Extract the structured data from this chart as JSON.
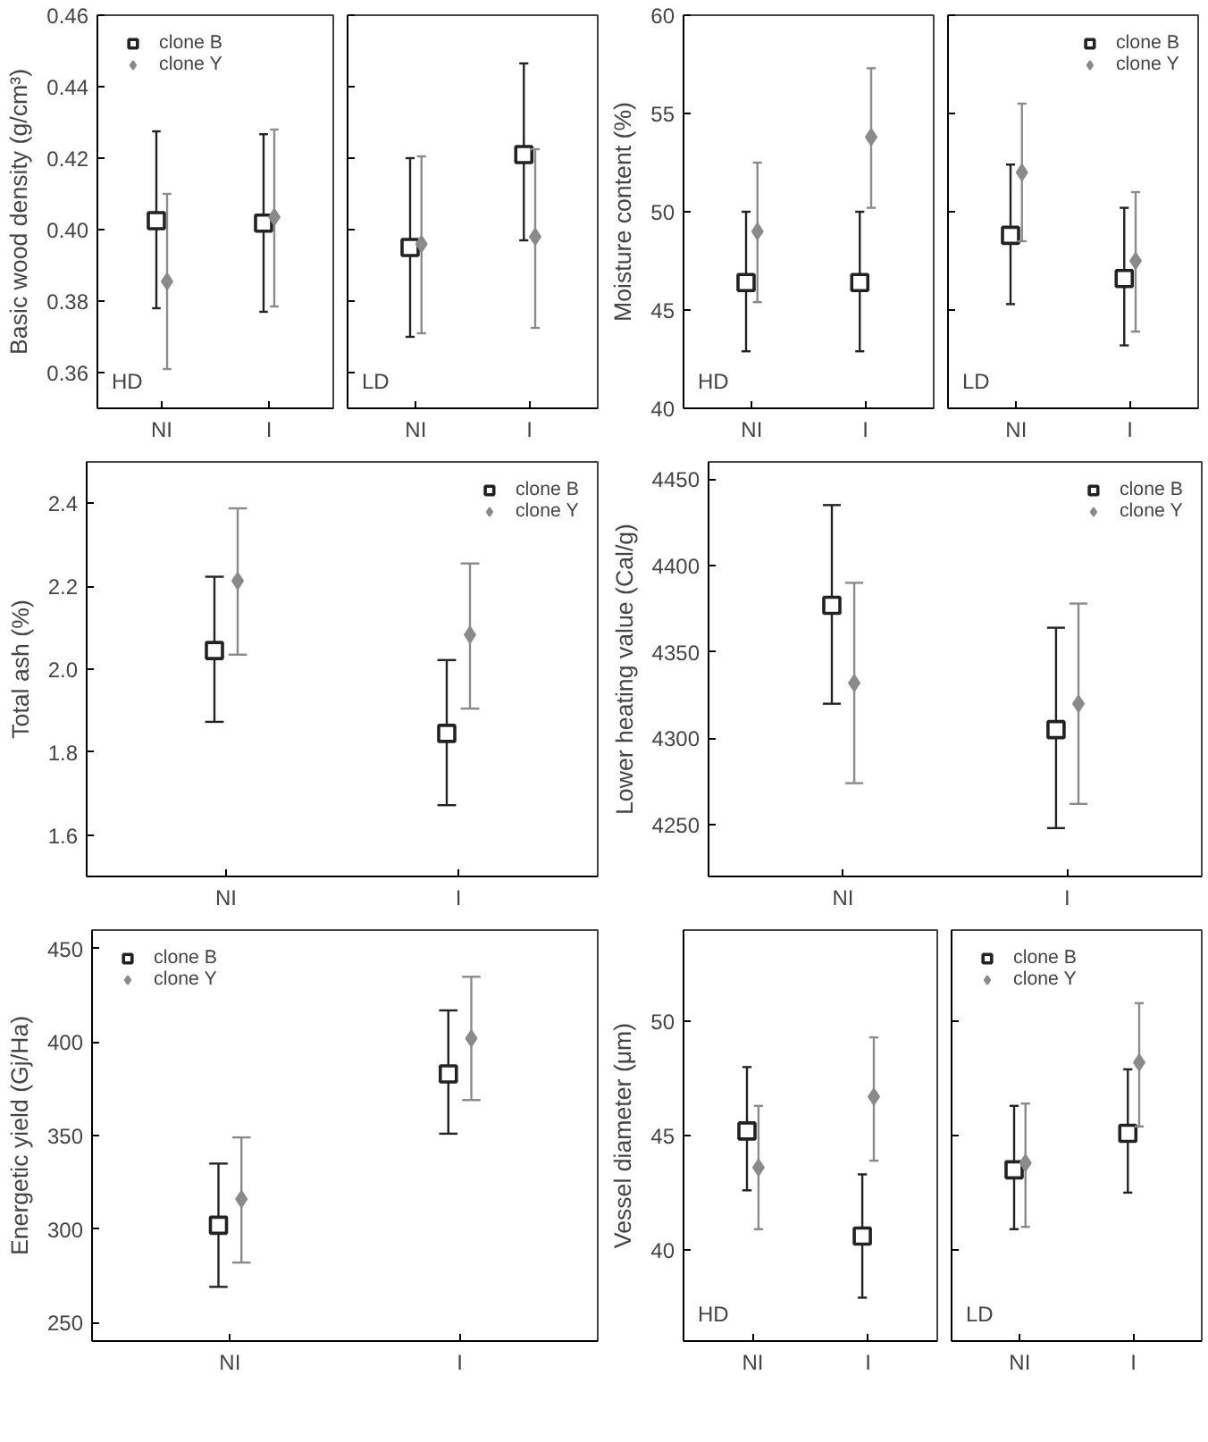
{
  "chart_data": [
    {
      "type": "scatter",
      "categories": [
        "NI",
        "I"
      ],
      "ylabel": "Basic wood density (g/cm³)",
      "ylim": [
        0.35,
        0.46
      ],
      "yticks": [
        0.36,
        0.38,
        {
          "value": 0.4,
          "label": "0.40"
        },
        0.42,
        0.44,
        0.46
      ],
      "legend": "top left",
      "annotations": [
        "HD"
      ],
      "series": [
        {
          "name": "clone B",
          "color": "#222222",
          "marker": "square",
          "values": [
            0.4025,
            0.4018
          ],
          "errors": [
            [
              0.378,
              0.4275
            ],
            [
              0.377,
              0.4267
            ]
          ]
        },
        {
          "name": "clone Y",
          "color": "#8a8a8a",
          "marker": "diamond",
          "values": [
            0.3855,
            0.4035
          ],
          "errors": [
            [
              0.361,
              0.41
            ],
            [
              0.3785,
              0.428
            ]
          ]
        }
      ]
    },
    {
      "type": "scatter",
      "categories": [
        "NI",
        "I"
      ],
      "ylim": [
        0.35,
        0.46
      ],
      "yticks": [
        0.36,
        0.38,
        0.4,
        0.42,
        0.44,
        0.46
      ],
      "tick_labels": "x",
      "annotations": [
        "LD"
      ],
      "series": [
        {
          "color": "#222222",
          "marker": "square",
          "values": [
            0.395,
            0.421
          ],
          "errors": [
            [
              0.37,
              0.42
            ],
            [
              0.397,
              0.4465
            ]
          ]
        },
        {
          "color": "#8a8a8a",
          "marker": "diamond",
          "values": [
            0.396,
            0.398
          ],
          "errors": [
            [
              0.371,
              0.4205
            ],
            [
              0.3725,
              0.4225
            ]
          ]
        }
      ]
    },
    {
      "type": "scatter",
      "categories": [
        "NI",
        "I"
      ],
      "ylabel": "Moisture content (%)",
      "ylim": [
        40,
        60
      ],
      "yticks": [
        40,
        45,
        50,
        55,
        60
      ],
      "annotations": [
        "HD"
      ],
      "series": [
        {
          "color": "#222222",
          "marker": "square",
          "values": [
            46.4,
            46.4
          ],
          "errors": [
            [
              42.9,
              50.0
            ],
            [
              42.9,
              50.0
            ]
          ]
        },
        {
          "color": "#8a8a8a",
          "marker": "diamond",
          "values": [
            49.0,
            53.8
          ],
          "errors": [
            [
              45.4,
              52.5
            ],
            [
              50.2,
              57.3
            ]
          ]
        }
      ]
    },
    {
      "type": "scatter",
      "categories": [
        "NI",
        "I"
      ],
      "ylim": [
        40,
        60
      ],
      "yticks": [
        40,
        45,
        50,
        55,
        60
      ],
      "tick_labels": "x",
      "legend": "top right",
      "annotations": [
        "LD"
      ],
      "series": [
        {
          "name": "clone B",
          "color": "#222222",
          "marker": "square",
          "values": [
            48.8,
            46.6
          ],
          "errors": [
            [
              45.3,
              52.4
            ],
            [
              43.2,
              50.2
            ]
          ]
        },
        {
          "name": "clone Y",
          "color": "#8a8a8a",
          "marker": "diamond",
          "values": [
            52.0,
            47.5
          ],
          "errors": [
            [
              48.5,
              55.5
            ],
            [
              43.9,
              51.0
            ]
          ]
        }
      ]
    },
    {
      "type": "scatter",
      "categories": [
        "NI",
        "I"
      ],
      "ylabel": "Total ash (%)",
      "ylim": [
        1.5,
        2.5
      ],
      "yticks": [
        {
          "value": 1.6,
          "label": "1.6"
        },
        {
          "value": 1.8,
          "label": "1.8"
        },
        {
          "value": 2.0,
          "label": "2.0"
        },
        {
          "value": 2.2,
          "label": "2.2"
        },
        {
          "value": 2.4,
          "label": "2.4"
        }
      ],
      "legend": "top right",
      "series": [
        {
          "name": "clone B",
          "color": "#222222",
          "marker": "square",
          "values": [
            2.045,
            1.845
          ],
          "errors": [
            [
              1.873,
              2.223
            ],
            [
              1.672,
              2.022
            ]
          ]
        },
        {
          "name": "clone Y",
          "color": "#8a8a8a",
          "marker": "diamond",
          "values": [
            2.213,
            2.083
          ],
          "errors": [
            [
              2.035,
              2.388
            ],
            [
              1.905,
              2.255
            ]
          ]
        }
      ]
    },
    {
      "type": "scatter",
      "categories": [
        "NI",
        "I"
      ],
      "ylabel": "Lower heating value (Cal/g)",
      "ylim": [
        4220,
        4460
      ],
      "yticks": [
        4250,
        4300,
        4350,
        4400,
        4450
      ],
      "legend": "top right",
      "series": [
        {
          "name": "clone B",
          "color": "#222222",
          "marker": "square",
          "values": [
            4377,
            4305
          ],
          "errors": [
            [
              4320,
              4435
            ],
            [
              4248,
              4364
            ]
          ]
        },
        {
          "name": "clone Y",
          "color": "#8a8a8a",
          "marker": "diamond",
          "values": [
            4332,
            4320
          ],
          "errors": [
            [
              4274,
              4390
            ],
            [
              4262,
              4378
            ]
          ]
        }
      ]
    },
    {
      "type": "scatter",
      "categories": [
        "NI",
        "I"
      ],
      "ylabel": "Energetic yield (Gj/Ha)",
      "ylim": [
        240,
        460
      ],
      "yticks": [
        250,
        300,
        350,
        400,
        450
      ],
      "legend": "top left",
      "series": [
        {
          "name": "clone B",
          "color": "#222222",
          "marker": "square",
          "values": [
            302,
            383
          ],
          "errors": [
            [
              269,
              335
            ],
            [
              351,
              417
            ]
          ]
        },
        {
          "name": "clone Y",
          "color": "#8a8a8a",
          "marker": "diamond",
          "values": [
            316,
            402
          ],
          "errors": [
            [
              282,
              349
            ],
            [
              369,
              435
            ]
          ]
        }
      ]
    },
    {
      "type": "scatter",
      "categories": [
        "NI",
        "I"
      ],
      "ylabel": "Vessel diameter (μm)",
      "ylim": [
        36,
        54
      ],
      "yticks": [
        40,
        45,
        50
      ],
      "annotations": [
        "HD"
      ],
      "series": [
        {
          "color": "#222222",
          "marker": "square",
          "values": [
            45.2,
            40.6
          ],
          "errors": [
            [
              42.6,
              48.0
            ],
            [
              37.9,
              43.3
            ]
          ]
        },
        {
          "color": "#8a8a8a",
          "marker": "diamond",
          "values": [
            43.6,
            46.7
          ],
          "errors": [
            [
              40.9,
              46.3
            ],
            [
              43.9,
              49.3
            ]
          ]
        }
      ]
    },
    {
      "type": "scatter",
      "categories": [
        "NI",
        "I"
      ],
      "ylim": [
        36,
        54
      ],
      "yticks": [
        40,
        45,
        50
      ],
      "tick_labels": "x",
      "legend": "top left",
      "annotations": [
        "LD"
      ],
      "series": [
        {
          "name": "clone B",
          "color": "#222222",
          "marker": "square",
          "values": [
            43.5,
            45.1
          ],
          "errors": [
            [
              40.9,
              46.3
            ],
            [
              42.5,
              47.9
            ]
          ]
        },
        {
          "name": "clone Y",
          "color": "#8a8a8a",
          "marker": "diamond",
          "values": [
            43.8,
            48.2
          ],
          "errors": [
            [
              41.0,
              46.4
            ],
            [
              45.4,
              50.8
            ]
          ]
        }
      ]
    }
  ]
}
